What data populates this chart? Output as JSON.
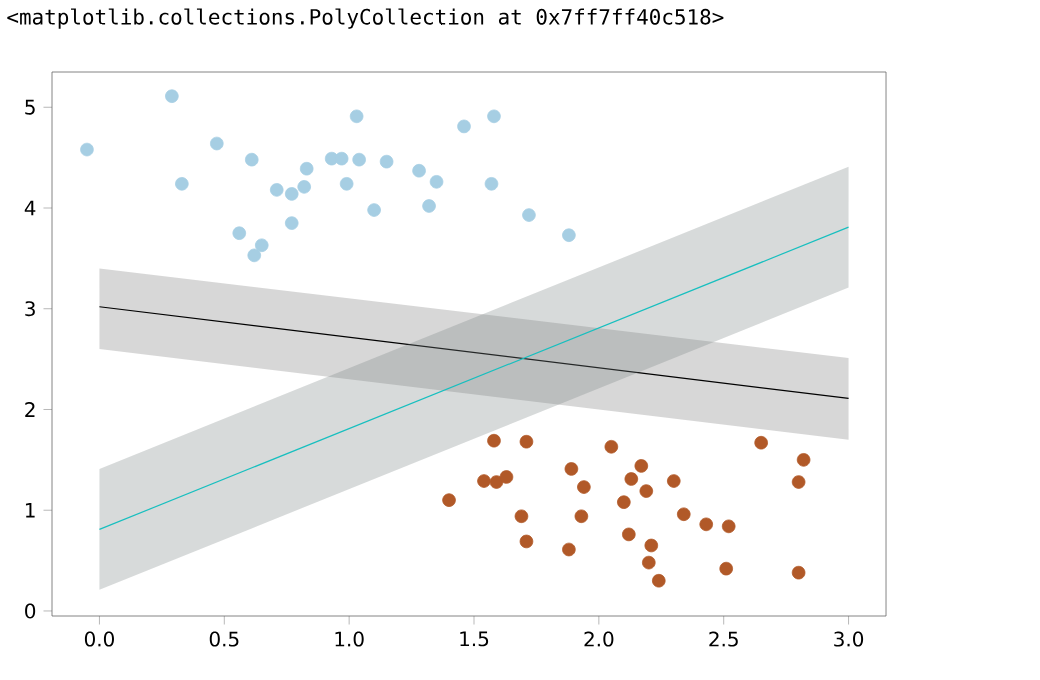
{
  "chart_data": {
    "type": "scatter",
    "annotations": [
      "<matplotlib.collections.PolyCollection at 0x7ff7ff40c518>"
    ],
    "xlim": [
      -0.19,
      3.15
    ],
    "ylim": [
      -0.05,
      5.35
    ],
    "xticks": [
      {
        "value": 0,
        "label": "0.0"
      },
      {
        "value": 0.5,
        "label": "0.5"
      },
      {
        "value": 1,
        "label": "1.0"
      },
      {
        "value": 1.5,
        "label": "1.5"
      },
      {
        "value": 2,
        "label": "2.0"
      },
      {
        "value": 2.5,
        "label": "2.5"
      },
      {
        "value": 3,
        "label": "3.0"
      }
    ],
    "yticks": [
      0,
      1,
      2,
      3,
      4,
      5
    ],
    "series": [
      {
        "marker": "circle",
        "color": "#a6cee3",
        "x": [
          -0.05,
          0.29,
          0.33,
          0.47,
          0.61,
          0.56,
          0.62,
          0.65,
          0.71,
          0.77,
          0.77,
          0.82,
          0.83,
          0.93,
          0.97,
          0.99,
          1.04,
          1.03,
          1.1,
          1.15,
          1.28,
          1.32,
          1.35,
          1.46,
          1.57,
          1.58,
          1.72,
          1.88
        ],
        "values": [
          4.58,
          5.11,
          4.24,
          4.64,
          4.48,
          3.75,
          3.53,
          3.63,
          4.18,
          4.14,
          3.85,
          4.21,
          4.39,
          4.49,
          4.49,
          4.24,
          4.48,
          4.91,
          3.98,
          4.46,
          4.37,
          4.02,
          4.26,
          4.81,
          4.24,
          4.91,
          3.93,
          3.73
        ]
      },
      {
        "marker": "circle",
        "color": "#b15928",
        "x": [
          1.4,
          1.54,
          1.58,
          1.59,
          1.63,
          1.71,
          1.69,
          1.71,
          1.88,
          1.89,
          1.93,
          1.94,
          2.05,
          2.1,
          2.12,
          2.13,
          2.17,
          2.19,
          2.21,
          2.2,
          2.24,
          2.3,
          2.34,
          2.43,
          2.52,
          2.51,
          2.65,
          2.8,
          2.82,
          2.8
        ],
        "values": [
          1.1,
          1.29,
          1.69,
          1.28,
          1.33,
          1.68,
          0.94,
          0.69,
          0.61,
          1.41,
          0.94,
          1.23,
          1.63,
          1.08,
          0.76,
          1.31,
          1.44,
          1.19,
          0.65,
          0.48,
          0.3,
          1.29,
          0.96,
          0.86,
          0.84,
          0.42,
          1.67,
          1.28,
          1.5,
          0.38
        ]
      },
      {
        "type": "line",
        "marker": "none",
        "color": "#000000",
        "x": [
          0,
          3
        ],
        "values": [
          3.02,
          2.11
        ],
        "lower": [
          2.6,
          1.7
        ],
        "upper": [
          3.4,
          2.51
        ]
      },
      {
        "type": "line",
        "marker": "none",
        "color": "#17bfbf",
        "x": [
          0,
          3
        ],
        "values": [
          0.81,
          3.81
        ],
        "lower": [
          0.21,
          3.21
        ],
        "upper": [
          1.41,
          4.41
        ]
      }
    ]
  }
}
